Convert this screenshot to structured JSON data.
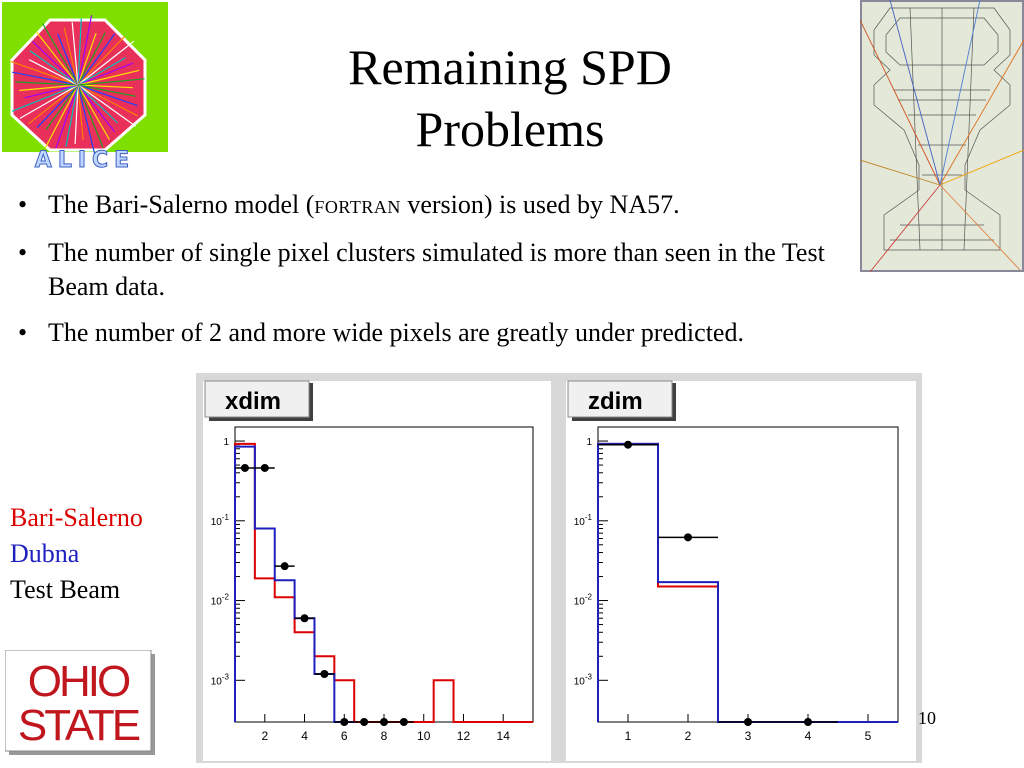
{
  "slide": {
    "title_line1": "Remaining SPD",
    "title_line2": "Problems",
    "bullets": [
      {
        "pre": "The Bari-Salerno model (",
        "sc": "FORTRAN",
        "post": " version) is used by NA57."
      },
      {
        "text": "The number of single pixel clusters simulated is more than seen in the Test Beam data."
      },
      {
        "text": "The number of 2 and more wide pixels are greatly under predicted."
      }
    ],
    "legend": [
      {
        "label": "Bari-Salerno",
        "color": "#dd0000"
      },
      {
        "label": "Dubna",
        "color": "#2020c0"
      },
      {
        "label": "Test Beam",
        "color": "#000000"
      }
    ],
    "slide_number": "10",
    "logo_alice_text": "ALICE",
    "logo_ohio_line1": "OHIO",
    "logo_ohio_line2": "STATE"
  },
  "chart_data": [
    {
      "type": "line",
      "title": "xdim",
      "yscale": "log",
      "xlim": [
        0.5,
        15.5
      ],
      "ylim": [
        0.0003,
        1.5
      ],
      "xticks": [
        2,
        4,
        6,
        8,
        10,
        12,
        14
      ],
      "yticks": [
        {
          "v": 1,
          "label": "1"
        },
        {
          "v": 0.1,
          "label": "10-1"
        },
        {
          "v": 0.01,
          "label": "10-2"
        },
        {
          "v": 0.001,
          "label": "10-3"
        }
      ],
      "series": [
        {
          "color": "#dd0000",
          "style": "step",
          "edges": [
            0.5,
            1.5,
            2.5,
            3.5,
            4.5,
            5.5,
            6.5,
            7.5,
            10.5,
            11.5,
            15.5
          ],
          "values": [
            0.92,
            0.019,
            0.011,
            0.004,
            0.002,
            0.001,
            0.0003,
            0.0003,
            0.001,
            0.0003
          ]
        },
        {
          "color": "#1f1fbf",
          "style": "step",
          "edges": [
            0.5,
            1.5,
            2.5,
            3.5,
            4.5,
            5.5,
            6.5
          ],
          "values": [
            0.85,
            0.08,
            0.018,
            0.006,
            0.0012,
            0.0003
          ]
        },
        {
          "color": "#000000",
          "style": "points",
          "points": [
            {
              "x": 1,
              "y": 0.46,
              "xerr": 0.5
            },
            {
              "x": 2,
              "y": 0.46,
              "xerr": 0.5
            },
            {
              "x": 3,
              "y": 0.027,
              "xerr": 0.5
            },
            {
              "x": 4,
              "y": 0.006,
              "xerr": 0.5
            },
            {
              "x": 5,
              "y": 0.0012,
              "xerr": 0.5
            },
            {
              "x": 6,
              "y": 0.0003,
              "xerr": 0.5
            },
            {
              "x": 7,
              "y": 0.0003,
              "xerr": 0.5
            },
            {
              "x": 8,
              "y": 0.0003,
              "xerr": 0.5
            },
            {
              "x": 9,
              "y": 0.0003,
              "xerr": 0.5
            }
          ]
        }
      ]
    },
    {
      "type": "line",
      "title": "zdim",
      "yscale": "log",
      "xlim": [
        0.5,
        5.5
      ],
      "ylim": [
        0.0003,
        1.5
      ],
      "xticks": [
        1,
        2,
        3,
        4,
        5
      ],
      "yticks": [
        {
          "v": 1,
          "label": "1"
        },
        {
          "v": 0.1,
          "label": "10-1"
        },
        {
          "v": 0.01,
          "label": "10-2"
        },
        {
          "v": 0.001,
          "label": "10-3"
        }
      ],
      "series": [
        {
          "color": "#dd0000",
          "style": "step",
          "edges": [
            0.5,
            1.5,
            2.5,
            5.5
          ],
          "values": [
            0.92,
            0.015,
            0.0003
          ]
        },
        {
          "color": "#1f1fbf",
          "style": "step",
          "edges": [
            0.5,
            1.5,
            2.5,
            5.5
          ],
          "values": [
            0.92,
            0.017,
            0.0003
          ]
        },
        {
          "color": "#000000",
          "style": "points",
          "points": [
            {
              "x": 1,
              "y": 0.9,
              "xerr": 0.5
            },
            {
              "x": 2,
              "y": 0.062,
              "xerr": 0.5
            },
            {
              "x": 3,
              "y": 0.0003,
              "xerr": 0.5
            },
            {
              "x": 4,
              "y": 0.0003,
              "xerr": 0.5
            }
          ]
        }
      ]
    }
  ]
}
